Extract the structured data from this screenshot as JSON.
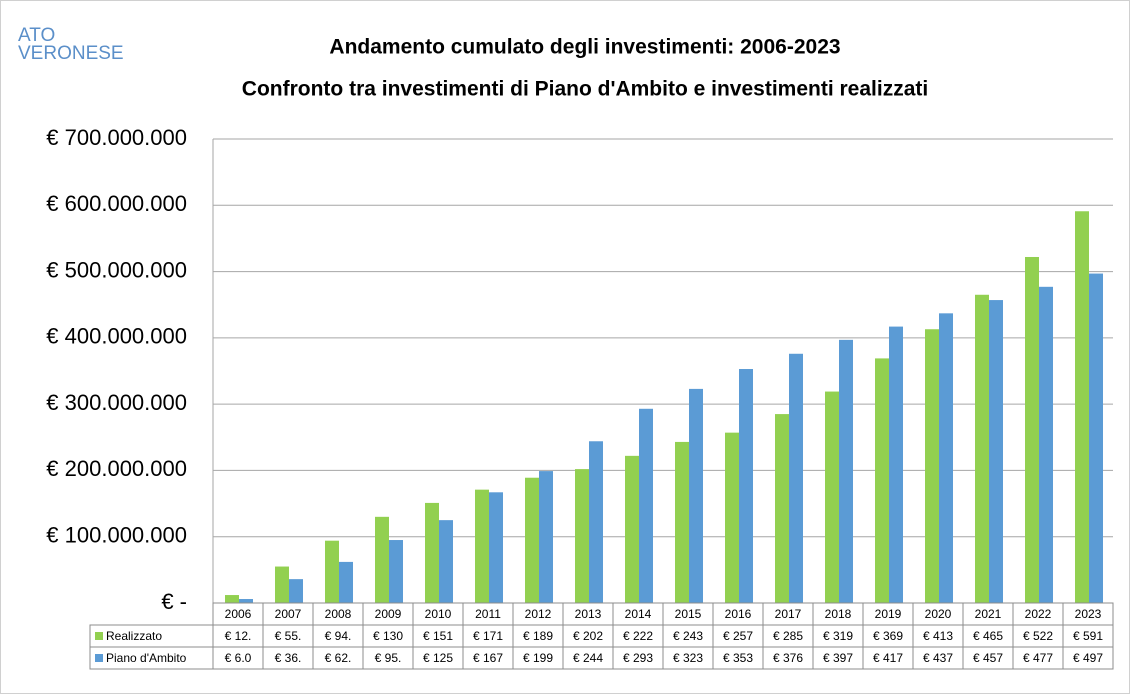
{
  "logo": [
    "ATO",
    "VERONESE"
  ],
  "chart_data": {
    "type": "bar",
    "title": "Andamento cumulato degli investimenti: 2006-2023",
    "subtitle": "Confronto tra investimenti di Piano d'Ambito e investimenti realizzati",
    "categories": [
      "2006",
      "2007",
      "2008",
      "2009",
      "2010",
      "2011",
      "2012",
      "2013",
      "2014",
      "2015",
      "2016",
      "2017",
      "2018",
      "2019",
      "2020",
      "2021",
      "2022",
      "2023"
    ],
    "series": [
      {
        "name": "Realizzato",
        "color": "#92d050",
        "values": [
          12000000,
          55000000,
          94000000,
          130000000,
          151000000,
          171000000,
          189000000,
          202000000,
          222000000,
          243000000,
          257000000,
          285000000,
          319000000,
          369000000,
          413000000,
          465000000,
          522000000,
          591000000
        ],
        "value_labels": [
          "€ 12.",
          "€ 55.",
          "€ 94.",
          "€ 130",
          "€ 151",
          "€ 171",
          "€ 189",
          "€ 202",
          "€ 222",
          "€ 243",
          "€ 257",
          "€ 285",
          "€ 319",
          "€ 369",
          "€ 413",
          "€ 465",
          "€ 522",
          "€ 591"
        ]
      },
      {
        "name": "Piano d'Ambito",
        "color": "#5b9bd5",
        "values": [
          6000000,
          36000000,
          62000000,
          95000000,
          125000000,
          167000000,
          199000000,
          244000000,
          293000000,
          323000000,
          353000000,
          376000000,
          397000000,
          417000000,
          437000000,
          457000000,
          477000000,
          497000000
        ],
        "value_labels": [
          "€ 6.0",
          "€ 36.",
          "€ 62.",
          "€ 95.",
          "€ 125",
          "€ 167",
          "€ 199",
          "€ 244",
          "€ 293",
          "€ 323",
          "€ 353",
          "€ 376",
          "€ 397",
          "€ 417",
          "€ 437",
          "€ 457",
          "€ 477",
          "€ 497"
        ]
      }
    ],
    "ylim": [
      0,
      700000000
    ],
    "yticks": [
      {
        "value": 0,
        "label": "€ -"
      },
      {
        "value": 100000000,
        "label": "€ 100.000.000"
      },
      {
        "value": 200000000,
        "label": "€ 200.000.000"
      },
      {
        "value": 300000000,
        "label": "€ 300.000.000"
      },
      {
        "value": 400000000,
        "label": "€ 400.000.000"
      },
      {
        "value": 500000000,
        "label": "€ 500.000.000"
      },
      {
        "value": 600000000,
        "label": "€ 600.000.000"
      },
      {
        "value": 700000000,
        "label": "€ 700.000.000"
      }
    ],
    "grid": true
  }
}
